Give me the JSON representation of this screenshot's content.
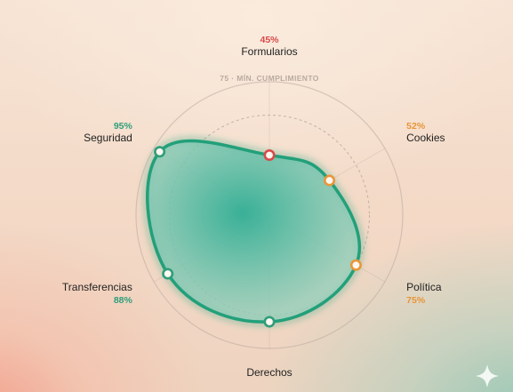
{
  "chart_data": {
    "type": "radar",
    "r_range": [
      0,
      100
    ],
    "threshold": {
      "value": 75,
      "label": "75 · MÍN. CUMPLIMIENTO"
    },
    "axes": [
      {
        "name": "Formularios",
        "value": 45,
        "value_label": "45%",
        "status": "danger"
      },
      {
        "name": "Cookies",
        "value": 52,
        "value_label": "52%",
        "status": "warning"
      },
      {
        "name": "Política",
        "value": 75,
        "value_label": "75%",
        "status": "warning"
      },
      {
        "name": "Derechos",
        "value": 80,
        "value_label": "",
        "status": "ok"
      },
      {
        "name": "Transferencias",
        "value": 88,
        "value_label": "88%",
        "status": "ok"
      },
      {
        "name": "Seguridad",
        "value": 95,
        "value_label": "95%",
        "status": "ok"
      }
    ],
    "colors": {
      "danger": "#d94a4a",
      "warning": "#e8963a",
      "ok": "#2f9e7a",
      "area_stroke": "#22a07a",
      "area_fill_center": "#2fae94",
      "area_fill_edge": "#9fd3c0",
      "ring": "#b9aaa1",
      "label": "#222222"
    }
  }
}
